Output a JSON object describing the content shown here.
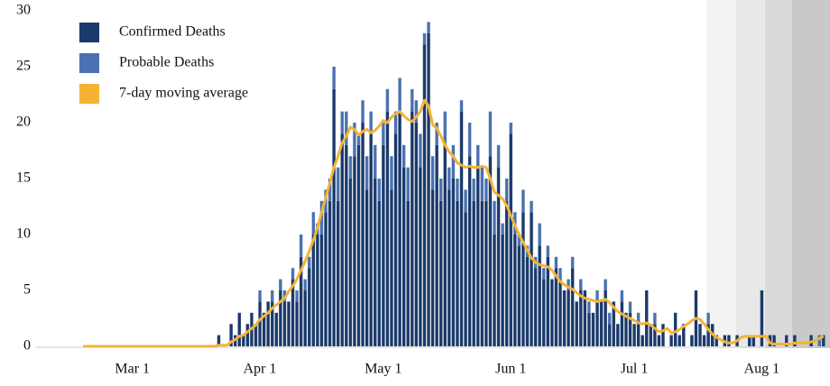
{
  "chart_data": {
    "type": "bar",
    "categories": [
      null,
      null,
      null,
      null,
      null,
      null,
      null,
      null,
      null,
      null,
      null,
      null,
      "Mar 1",
      null,
      null,
      null,
      null,
      null,
      null,
      null,
      null,
      null,
      null,
      null,
      null,
      null,
      null,
      null,
      null,
      null,
      null,
      null,
      null,
      null,
      null,
      null,
      null,
      null,
      null,
      null,
      null,
      null,
      null,
      "Apr 1",
      null,
      null,
      null,
      null,
      null,
      null,
      null,
      null,
      null,
      null,
      null,
      null,
      null,
      null,
      null,
      null,
      null,
      null,
      null,
      null,
      null,
      null,
      null,
      null,
      null,
      null,
      null,
      null,
      null,
      "May 1",
      null,
      null,
      null,
      null,
      null,
      null,
      null,
      null,
      null,
      null,
      null,
      null,
      null,
      null,
      null,
      null,
      null,
      null,
      null,
      null,
      null,
      null,
      null,
      null,
      null,
      null,
      null,
      null,
      null,
      null,
      "Jun 1",
      null,
      null,
      null,
      null,
      null,
      null,
      null,
      null,
      null,
      null,
      null,
      null,
      null,
      null,
      null,
      null,
      null,
      null,
      null,
      null,
      null,
      null,
      null,
      null,
      null,
      null,
      null,
      null,
      null,
      "Jul 1",
      null,
      null,
      null,
      null,
      null,
      null,
      null,
      null,
      null,
      null,
      null,
      null,
      null,
      null,
      null,
      null,
      null,
      null,
      null,
      null,
      null,
      null,
      null,
      null,
      null,
      null,
      null,
      null,
      null,
      null,
      "Aug 1",
      null,
      null,
      null,
      null,
      null,
      null,
      null,
      null,
      null,
      null,
      null,
      null,
      null,
      null,
      null
    ],
    "series": [
      {
        "name": "Confirmed Deaths",
        "type": "bar",
        "color": "#1b3a6b",
        "values": [
          0,
          0,
          0,
          0,
          0,
          0,
          0,
          0,
          0,
          0,
          0,
          0,
          0,
          0,
          0,
          0,
          0,
          0,
          0,
          0,
          0,
          0,
          0,
          0,
          0,
          0,
          0,
          0,
          0,
          0,
          0,
          0,
          0,
          1,
          0,
          0,
          2,
          1,
          3,
          1,
          2,
          3,
          2,
          4,
          3,
          4,
          4,
          3,
          5,
          4,
          4,
          6,
          4,
          8,
          5,
          7,
          10,
          10,
          10,
          12,
          13,
          23,
          13,
          19,
          18,
          15,
          17,
          18,
          20,
          14,
          19,
          15,
          13,
          18,
          21,
          14,
          19,
          21,
          16,
          13,
          21,
          20,
          16,
          27,
          28,
          14,
          18,
          13,
          18,
          14,
          15,
          13,
          21,
          12,
          17,
          13,
          16,
          13,
          13,
          17,
          10,
          16,
          10,
          13,
          19,
          10,
          9,
          12,
          8,
          12,
          7,
          9,
          6,
          8,
          6,
          7,
          6,
          5,
          5,
          7,
          4,
          5,
          5,
          3,
          3,
          4,
          4,
          5,
          2,
          4,
          2,
          4,
          3,
          3,
          2,
          2,
          1,
          5,
          2,
          2,
          1,
          2,
          0,
          1,
          3,
          1,
          2,
          0,
          1,
          5,
          2,
          1,
          2,
          2,
          1,
          0,
          1,
          1,
          0,
          1,
          0,
          0,
          1,
          1,
          0,
          5,
          0,
          1,
          1,
          0,
          0,
          1,
          0,
          1,
          0,
          0,
          0,
          1,
          0,
          0,
          1
        ]
      },
      {
        "name": "Probable Deaths",
        "type": "bar",
        "color": "#4a72b0",
        "values": [
          0,
          0,
          0,
          0,
          0,
          0,
          0,
          0,
          0,
          0,
          0,
          0,
          0,
          0,
          0,
          0,
          0,
          0,
          0,
          0,
          0,
          0,
          0,
          0,
          0,
          0,
          0,
          0,
          0,
          0,
          0,
          0,
          0,
          0,
          0,
          0,
          0,
          0,
          0,
          0,
          0,
          0,
          0,
          1,
          0,
          0,
          1,
          0,
          1,
          1,
          0,
          1,
          1,
          2,
          1,
          1,
          2,
          1,
          3,
          2,
          2,
          2,
          3,
          2,
          3,
          2,
          3,
          1,
          2,
          3,
          2,
          3,
          2,
          2,
          2,
          3,
          2,
          3,
          2,
          3,
          2,
          2,
          3,
          1,
          1,
          3,
          2,
          2,
          3,
          2,
          3,
          2,
          1,
          2,
          3,
          2,
          2,
          3,
          2,
          4,
          3,
          2,
          1,
          2,
          1,
          2,
          1,
          2,
          1,
          1,
          1,
          2,
          1,
          1,
          0,
          1,
          1,
          0,
          1,
          1,
          0,
          1,
          0,
          1,
          0,
          1,
          0,
          1,
          1,
          0,
          0,
          1,
          0,
          1,
          0,
          1,
          0,
          0,
          0,
          1,
          0,
          0,
          0,
          0,
          0,
          0,
          0,
          0,
          0,
          0,
          0,
          0,
          1,
          0,
          0,
          0,
          0,
          0,
          0,
          0,
          0,
          0,
          0,
          0,
          0,
          0,
          0,
          0,
          0,
          0,
          0,
          0,
          0,
          0,
          0,
          0,
          0,
          0,
          0,
          1,
          0
        ]
      },
      {
        "name": "7-day moving average",
        "type": "line",
        "color": "#f5b335",
        "values": [
          0,
          0,
          0,
          0,
          0,
          0,
          0,
          0,
          0,
          0,
          0,
          0,
          0,
          0,
          0,
          0,
          0,
          0,
          0,
          0,
          0,
          0,
          0,
          0,
          0,
          0,
          0,
          0,
          0,
          0,
          0,
          0,
          0,
          0.1,
          0.1,
          0.1,
          0.4,
          0.6,
          0.9,
          1,
          1.3,
          1.6,
          1.9,
          2.4,
          2.7,
          3,
          3.4,
          3.7,
          4,
          4.3,
          4.9,
          5.4,
          6,
          6.8,
          7.6,
          8.5,
          9.5,
          10.6,
          12,
          13.3,
          14.6,
          16,
          17,
          18.2,
          18.8,
          19.6,
          19.4,
          18.9,
          19.2,
          19.4,
          19.1,
          19.3,
          19.7,
          20.2,
          20,
          20.5,
          20.8,
          21,
          20.6,
          20.3,
          20.1,
          20.5,
          21,
          22,
          21.5,
          19.8,
          19.5,
          18.8,
          18,
          17.4,
          17,
          16.4,
          16.2,
          16,
          16.1,
          16,
          16,
          16.1,
          16,
          15,
          13.8,
          13.5,
          13.2,
          12.6,
          11.7,
          10.8,
          10,
          9.3,
          8.6,
          7.9,
          7.5,
          7.3,
          7.2,
          7.1,
          6.8,
          6.3,
          5.8,
          5.5,
          5.3,
          5.1,
          4.8,
          4.5,
          4.3,
          4.2,
          4.1,
          4,
          4.1,
          4.2,
          3.9,
          3.5,
          3.1,
          2.9,
          2.7,
          2.5,
          2.3,
          2.1,
          2,
          2.1,
          1.9,
          1.6,
          1.3,
          1.4,
          1.6,
          1.2,
          1.3,
          1.5,
          1.8,
          2,
          2.3,
          2.5,
          2.4,
          2,
          1.5,
          1.1,
          0.8,
          0.6,
          0.4,
          0.3,
          0.3,
          0.5,
          0.8,
          0.9,
          0.9,
          0.9,
          0.9,
          0.9,
          0.9,
          0.3,
          0.2,
          0.2,
          0.2,
          0.2,
          0.2,
          0.3,
          0.3,
          0.3,
          0.3,
          0.4,
          0.5,
          0.7,
          0.9
        ]
      }
    ],
    "ylim": [
      0,
      30
    ],
    "yticks": [
      0,
      5,
      10,
      15,
      20,
      25,
      30
    ],
    "grid": false,
    "legend": "top-left"
  }
}
